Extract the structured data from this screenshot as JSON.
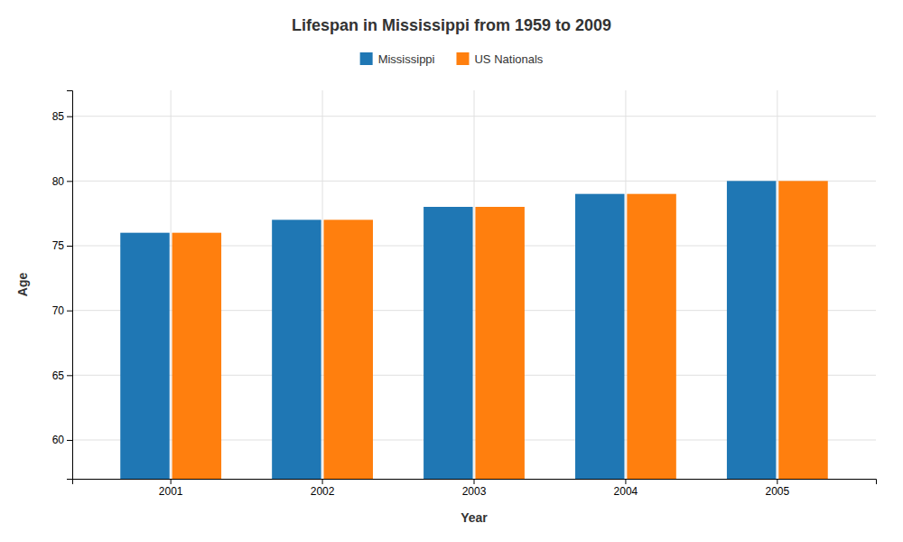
{
  "chart_data": {
    "type": "bar",
    "title": "Lifespan in Mississippi from 1959 to 2009",
    "x_label": "Year",
    "y_label": "Age",
    "categories": [
      "2001",
      "2002",
      "2003",
      "2004",
      "2005"
    ],
    "series": [
      {
        "name": "Mississippi",
        "values": [
          76,
          77,
          78,
          79,
          80
        ]
      },
      {
        "name": "US Nationals",
        "values": [
          76,
          77,
          78,
          79,
          80
        ]
      }
    ],
    "ylim": [
      57,
      87
    ],
    "yticks": [
      60,
      65,
      70,
      75,
      80,
      85
    ],
    "grid": true,
    "legend": "top"
  }
}
